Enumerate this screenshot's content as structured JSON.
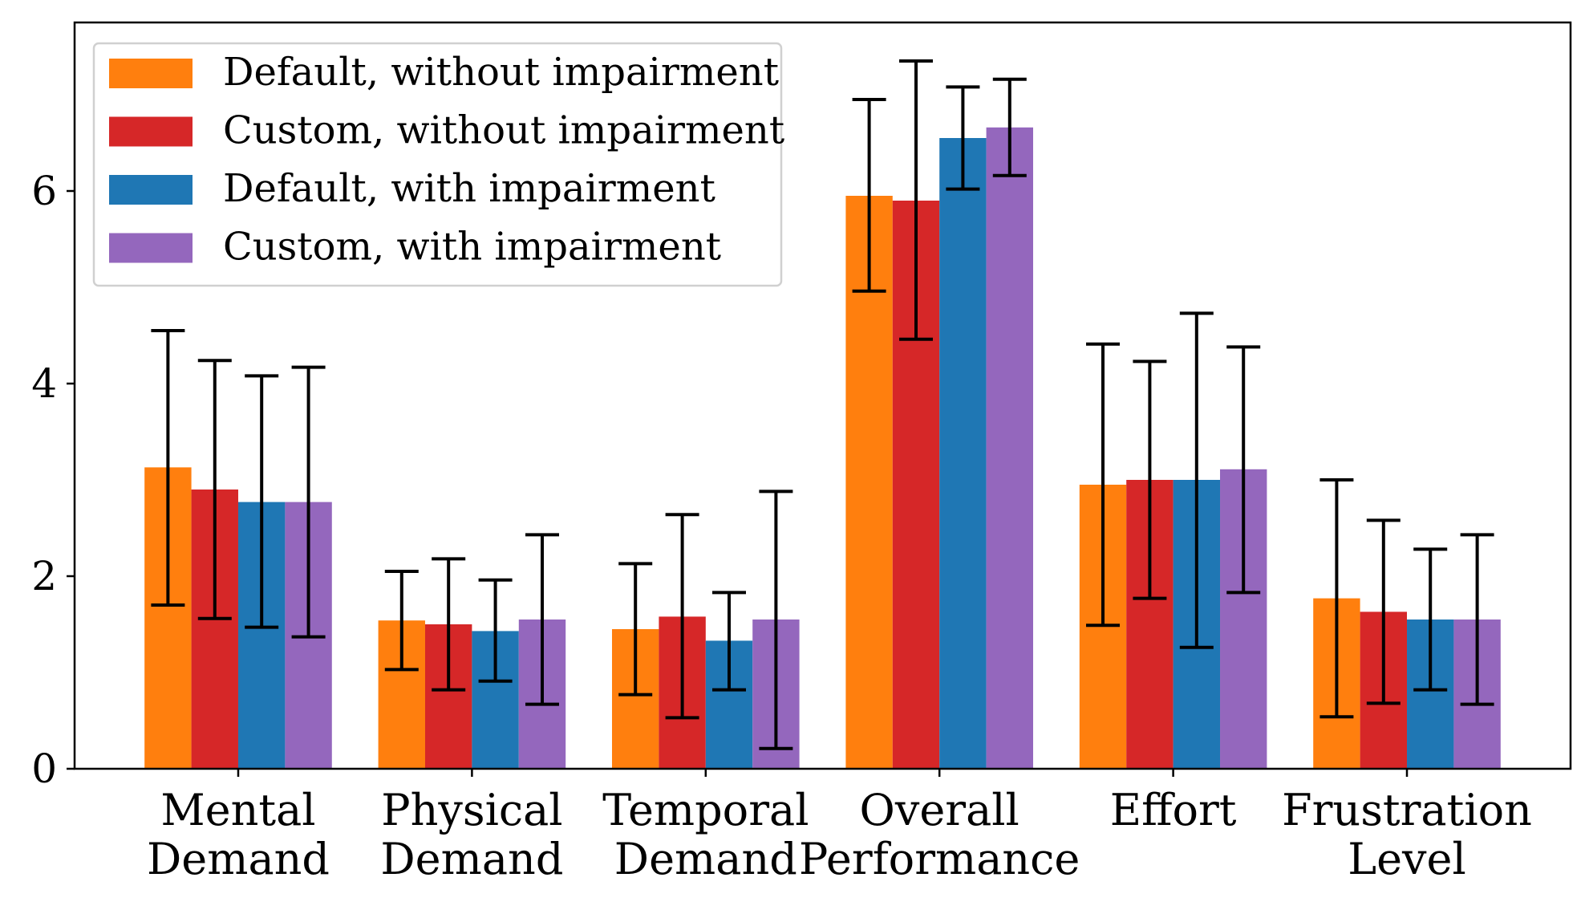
{
  "chart_data": {
    "type": "bar",
    "title": "",
    "xlabel": "",
    "ylabel": "",
    "ylim": [
      0,
      7.75
    ],
    "yticks": [
      "0",
      "2",
      "4",
      "6"
    ],
    "categories": [
      [
        "Mental",
        "Demand"
      ],
      [
        "Physical",
        "Demand"
      ],
      [
        "Temporal",
        "Demand"
      ],
      [
        "Overall",
        "Performance"
      ],
      [
        "Effort"
      ],
      [
        "Frustration",
        "Level"
      ]
    ],
    "legend_position": "top-left",
    "series": [
      {
        "name": "Default, without impairment",
        "color": "#ff7f0e",
        "values": [
          3.13,
          1.54,
          1.45,
          5.95,
          2.95,
          1.77
        ],
        "err_low": [
          1.7,
          1.03,
          0.77,
          4.96,
          1.49,
          0.54
        ],
        "err_high": [
          4.55,
          2.05,
          2.13,
          6.95,
          4.41,
          3.0
        ]
      },
      {
        "name": "Custom, without impairment",
        "color": "#d62728",
        "values": [
          2.9,
          1.5,
          1.58,
          5.9,
          3.0,
          1.63
        ],
        "err_low": [
          1.56,
          0.82,
          0.53,
          4.46,
          1.77,
          0.68
        ],
        "err_high": [
          4.24,
          2.18,
          2.64,
          7.35,
          4.23,
          2.58
        ]
      },
      {
        "name": "Default, with impairment",
        "color": "#1f77b4",
        "values": [
          2.77,
          1.43,
          1.33,
          6.55,
          3.0,
          1.55
        ],
        "err_low": [
          1.47,
          0.91,
          0.82,
          6.02,
          1.26,
          0.82
        ],
        "err_high": [
          4.08,
          1.96,
          1.83,
          7.08,
          4.73,
          2.28
        ]
      },
      {
        "name": "Custom, with impairment",
        "color": "#9467bd",
        "values": [
          2.77,
          1.55,
          1.55,
          6.66,
          3.11,
          1.55
        ],
        "err_low": [
          1.37,
          0.67,
          0.21,
          6.16,
          1.83,
          0.67
        ],
        "err_high": [
          4.17,
          2.43,
          2.88,
          7.16,
          4.38,
          2.43
        ]
      }
    ]
  }
}
